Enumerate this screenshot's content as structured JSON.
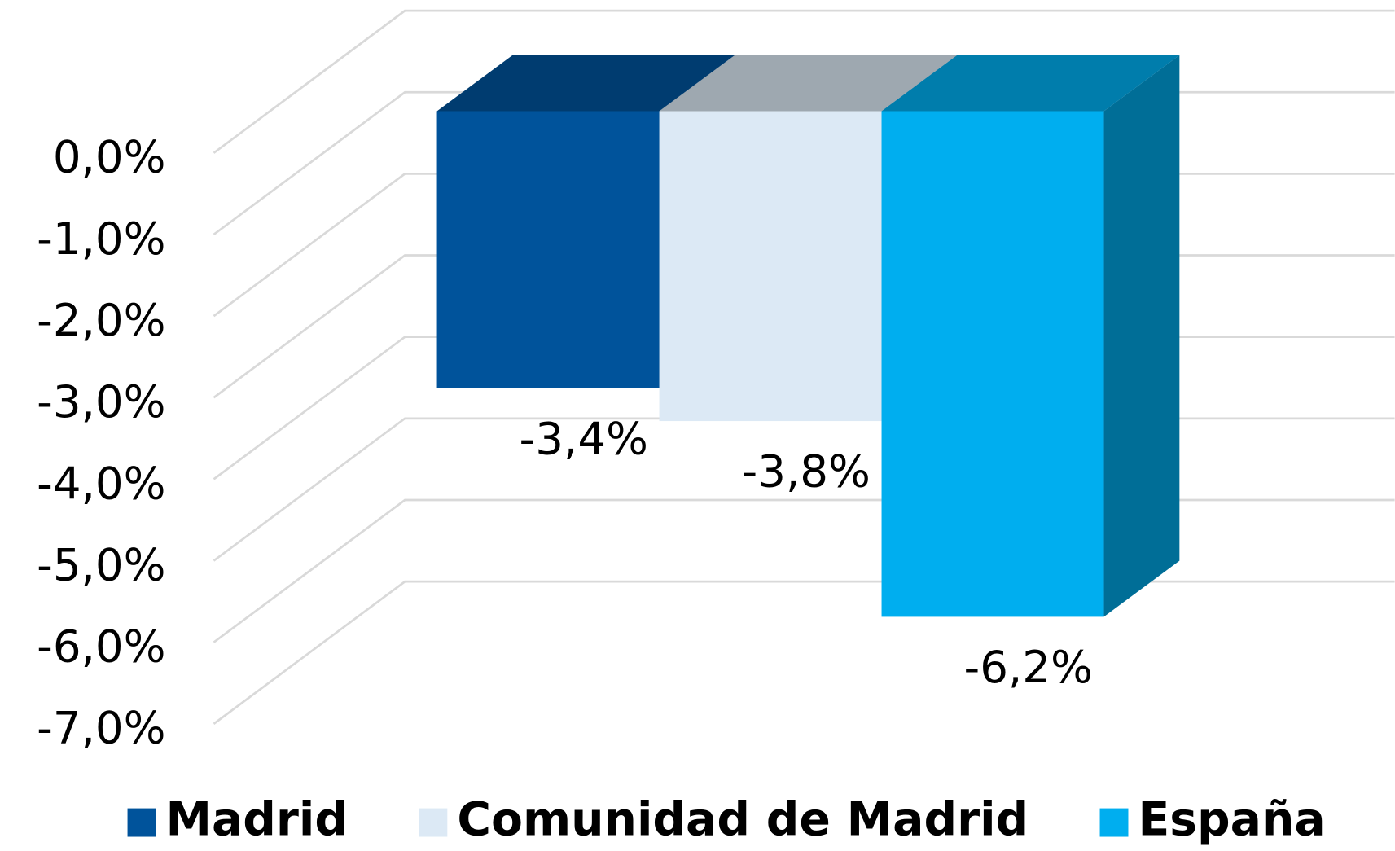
{
  "chart_data": {
    "type": "bar",
    "series": [
      {
        "name": "Madrid",
        "color": "#00539b",
        "values": [
          -3.4
        ],
        "value_labels": [
          "-3,4%"
        ]
      },
      {
        "name": "Comunidad de Madrid",
        "color": "#dce9f5",
        "values": [
          -3.8
        ],
        "value_labels": [
          "-3,8%"
        ]
      },
      {
        "name": "España",
        "color": "#00aeef",
        "values": [
          -6.2
        ],
        "value_labels": [
          "-6,2%"
        ]
      }
    ],
    "ylim": [
      -7,
      0
    ],
    "yticks": [
      {
        "value": 0,
        "label": "0,0%"
      },
      {
        "value": -1,
        "label": "-1,0%"
      },
      {
        "value": -2,
        "label": "-2,0%"
      },
      {
        "value": -3,
        "label": "-3,0%"
      },
      {
        "value": -4,
        "label": "-4,0%"
      },
      {
        "value": -5,
        "label": "-5,0%"
      },
      {
        "value": -6,
        "label": "-6,0%"
      },
      {
        "value": -7,
        "label": "-7,0%"
      }
    ],
    "grid": true,
    "legend": "bottom"
  }
}
